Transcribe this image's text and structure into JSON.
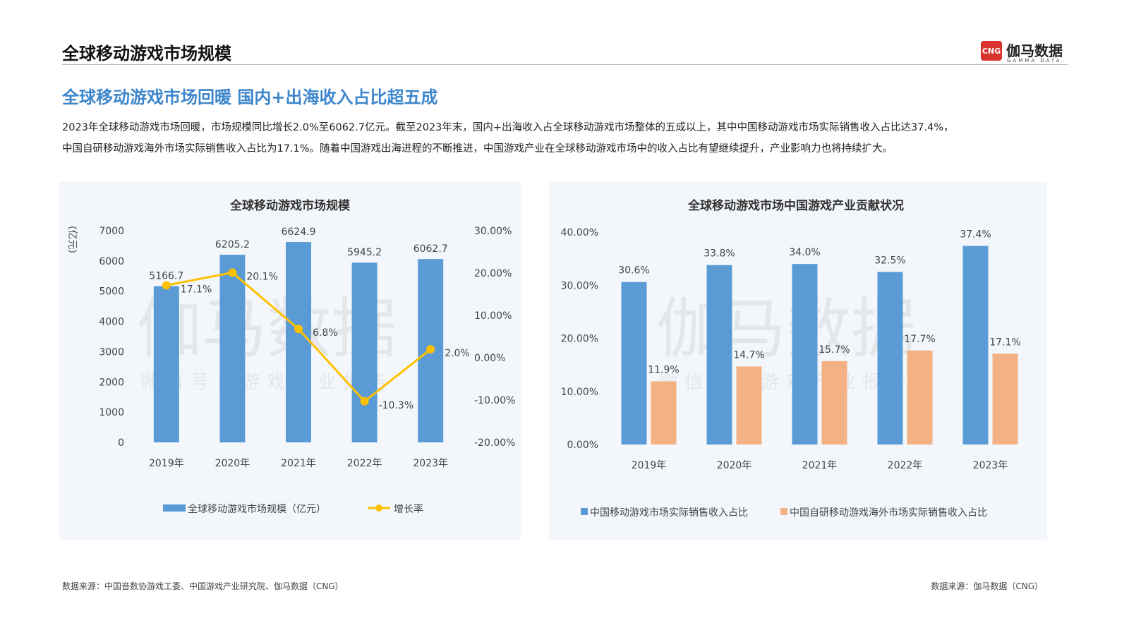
{
  "header": {
    "title": "全球移动游戏市场规模",
    "logo_mark": "CNG",
    "logo_name": "伽马数据",
    "logo_sub": "GAMMA DATA"
  },
  "headline": "全球移动游戏市场回暖 国内+出海收入占比超五成",
  "paragraph": {
    "line1": "2023年全球移动游戏市场回暖，市场规模同比增长2.0%至6062.7亿元。截至2023年末，国内+出海收入占全球移动游戏市场整体的五成以上，其中中国移动游戏市场实际销售收入占比达37.4%，",
    "line2": "中国自研移动游戏海外市场实际销售收入占比为17.1%。随着中国游戏出海进程的不断推进，中国游戏产业在全球移动游戏市场中的收入占比有望继续提升，产业影响力也将持续扩大。"
  },
  "watermark": {
    "main": "伽马数据",
    "sub": "微信号：游戏产业报告"
  },
  "colors": {
    "accent_blue": "#3d86cc",
    "bar_blue": "#5b9bd5",
    "bar_orange": "#f4b183",
    "line_yellow": "#ffc000",
    "panel_bg": "#f3f7fb"
  },
  "chart_data": [
    {
      "type": "bar",
      "title": "全球移动游戏市场规模",
      "ylabel": "(亿元)",
      "categories": [
        "2019年",
        "2020年",
        "2021年",
        "2022年",
        "2023年"
      ],
      "series": [
        {
          "name": "全球移动游戏市场规模（亿元）",
          "type": "bar",
          "axis": "left",
          "values": [
            5166.7,
            6205.2,
            6624.9,
            5945.2,
            6062.7
          ],
          "labels": [
            "5166.7",
            "6205.2",
            "6624.9",
            "5945.2",
            "6062.7"
          ]
        },
        {
          "name": "增长率",
          "type": "line",
          "axis": "right",
          "values": [
            17.1,
            20.1,
            6.8,
            -10.3,
            2.0
          ],
          "labels": [
            "17.1%",
            "20.1%",
            "6.8%",
            "-10.3%",
            "2.0%"
          ]
        }
      ],
      "ylim": [
        0,
        7000
      ],
      "yticks": [
        "0",
        "1000",
        "2000",
        "3000",
        "4000",
        "5000",
        "6000",
        "7000"
      ],
      "y2lim": [
        -20,
        30
      ],
      "y2ticks": [
        "-20.00%",
        "-10.00%",
        "0.00%",
        "10.00%",
        "20.00%",
        "30.00%"
      ],
      "legend": "bottom",
      "grid": false
    },
    {
      "type": "bar",
      "title": "全球移动游戏市场中国游戏产业贡献状况",
      "categories": [
        "2019年",
        "2020年",
        "2021年",
        "2022年",
        "2023年"
      ],
      "series": [
        {
          "name": "中国移动游戏市场实际销售收入占比",
          "values": [
            30.6,
            33.8,
            34.0,
            32.5,
            37.4
          ],
          "labels": [
            "30.6%",
            "33.8%",
            "34.0%",
            "32.5%",
            "37.4%"
          ]
        },
        {
          "name": "中国自研移动游戏海外市场实际销售收入占比",
          "values": [
            11.9,
            14.7,
            15.7,
            17.7,
            17.1
          ],
          "labels": [
            "11.9%",
            "14.7%",
            "15.7%",
            "17.7%",
            "17.1%"
          ]
        }
      ],
      "ylim": [
        0,
        40
      ],
      "yticks": [
        "0.00%",
        "10.00%",
        "20.00%",
        "30.00%",
        "40.00%"
      ],
      "legend": "bottom",
      "grid": false
    }
  ],
  "footer": {
    "left": "数据来源：中国音数协游戏工委、中国游戏产业研究院、伽马数据（CNG）",
    "right": "数据来源：伽马数据（CNG）"
  }
}
